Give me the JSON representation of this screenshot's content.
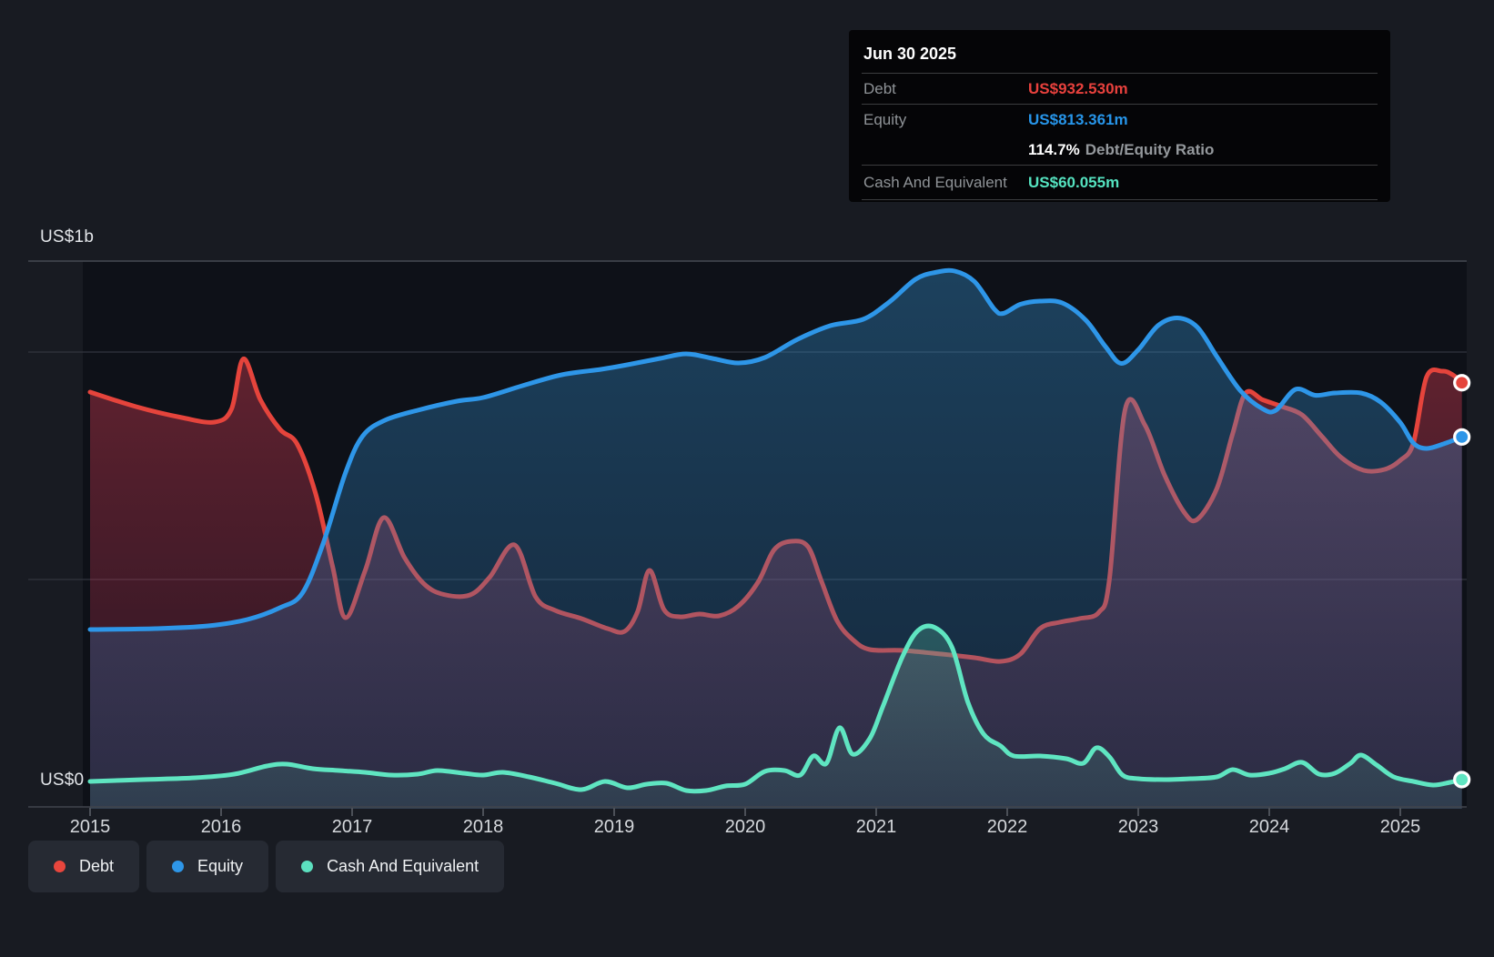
{
  "tooltip": {
    "date": "Jun 30 2025",
    "rows": [
      {
        "type": "metric",
        "label": "Debt",
        "value": "US$932.530m",
        "color": "#e8413d"
      },
      {
        "type": "metric",
        "label": "Equity",
        "value": "US$813.361m",
        "color": "#2795e9"
      },
      {
        "type": "ratio",
        "bold": "114.7%",
        "label": "Debt/Equity Ratio"
      },
      {
        "type": "metric",
        "label": "Cash And Equivalent",
        "value": "US$60.055m",
        "color": "#55e3c0"
      }
    ]
  },
  "y_axis": {
    "top_label": "US$1b",
    "bottom_label": "US$0"
  },
  "x_axis": {
    "years": [
      "2015",
      "2016",
      "2017",
      "2018",
      "2019",
      "2020",
      "2021",
      "2022",
      "2023",
      "2024",
      "2025"
    ]
  },
  "legend": [
    {
      "label": "Debt",
      "color": "#e8463d"
    },
    {
      "label": "Equity",
      "color": "#2e96e8"
    },
    {
      "label": "Cash And Equivalent",
      "color": "#5ce0bf"
    }
  ],
  "chart_data": {
    "type": "area",
    "x_unit": "year",
    "y_unit": "US$ millions",
    "x_range": [
      2015.0,
      2025.5
    ],
    "y_axis_range_musd": [
      0,
      1200
    ],
    "gridline_values_musd": [
      1000,
      500
    ],
    "grid": "horizontal-only",
    "legend_position": "bottom-left",
    "last_point_date": "Jun 30 2025",
    "series": [
      {
        "name": "Debt",
        "color": "#e5443c",
        "points": [
          [
            2015.0,
            912
          ],
          [
            2015.35,
            880
          ],
          [
            2015.7,
            856
          ],
          [
            2015.95,
            846
          ],
          [
            2016.08,
            875
          ],
          [
            2016.17,
            985
          ],
          [
            2016.3,
            895
          ],
          [
            2016.45,
            830
          ],
          [
            2016.58,
            798
          ],
          [
            2016.72,
            690
          ],
          [
            2016.85,
            530
          ],
          [
            2016.95,
            416
          ],
          [
            2017.1,
            520
          ],
          [
            2017.24,
            636
          ],
          [
            2017.4,
            548
          ],
          [
            2017.55,
            490
          ],
          [
            2017.7,
            467
          ],
          [
            2017.9,
            466
          ],
          [
            2018.05,
            505
          ],
          [
            2018.24,
            576
          ],
          [
            2018.4,
            462
          ],
          [
            2018.55,
            432
          ],
          [
            2018.75,
            414
          ],
          [
            2018.95,
            392
          ],
          [
            2019.08,
            386
          ],
          [
            2019.18,
            430
          ],
          [
            2019.27,
            520
          ],
          [
            2019.38,
            434
          ],
          [
            2019.5,
            418
          ],
          [
            2019.65,
            424
          ],
          [
            2019.8,
            420
          ],
          [
            2019.95,
            442
          ],
          [
            2020.1,
            495
          ],
          [
            2020.22,
            565
          ],
          [
            2020.35,
            584
          ],
          [
            2020.48,
            572
          ],
          [
            2020.58,
            498
          ],
          [
            2020.7,
            410
          ],
          [
            2020.82,
            368
          ],
          [
            2020.95,
            346
          ],
          [
            2021.2,
            344
          ],
          [
            2021.5,
            336
          ],
          [
            2021.75,
            328
          ],
          [
            2021.95,
            320
          ],
          [
            2022.1,
            336
          ],
          [
            2022.25,
            392
          ],
          [
            2022.4,
            406
          ],
          [
            2022.55,
            414
          ],
          [
            2022.7,
            428
          ],
          [
            2022.78,
            500
          ],
          [
            2022.9,
            874
          ],
          [
            2023.05,
            840
          ],
          [
            2023.2,
            730
          ],
          [
            2023.35,
            648
          ],
          [
            2023.45,
            632
          ],
          [
            2023.6,
            700
          ],
          [
            2023.72,
            820
          ],
          [
            2023.82,
            910
          ],
          [
            2023.95,
            895
          ],
          [
            2024.1,
            880
          ],
          [
            2024.25,
            862
          ],
          [
            2024.4,
            815
          ],
          [
            2024.55,
            768
          ],
          [
            2024.72,
            740
          ],
          [
            2024.88,
            742
          ],
          [
            2025.0,
            762
          ],
          [
            2025.1,
            800
          ],
          [
            2025.2,
            945
          ],
          [
            2025.32,
            958
          ],
          [
            2025.4,
            950
          ],
          [
            2025.47,
            932.53
          ]
        ]
      },
      {
        "name": "Equity",
        "color": "#2e96e8",
        "points": [
          [
            2015.0,
            390
          ],
          [
            2015.5,
            392
          ],
          [
            2015.9,
            398
          ],
          [
            2016.2,
            412
          ],
          [
            2016.45,
            438
          ],
          [
            2016.62,
            470
          ],
          [
            2016.78,
            580
          ],
          [
            2016.95,
            735
          ],
          [
            2017.08,
            815
          ],
          [
            2017.25,
            850
          ],
          [
            2017.5,
            872
          ],
          [
            2017.8,
            892
          ],
          [
            2018.0,
            900
          ],
          [
            2018.3,
            926
          ],
          [
            2018.6,
            950
          ],
          [
            2018.9,
            962
          ],
          [
            2019.1,
            972
          ],
          [
            2019.35,
            986
          ],
          [
            2019.55,
            996
          ],
          [
            2019.75,
            986
          ],
          [
            2019.95,
            976
          ],
          [
            2020.15,
            988
          ],
          [
            2020.4,
            1028
          ],
          [
            2020.65,
            1058
          ],
          [
            2020.9,
            1072
          ],
          [
            2021.1,
            1110
          ],
          [
            2021.3,
            1160
          ],
          [
            2021.45,
            1175
          ],
          [
            2021.6,
            1178
          ],
          [
            2021.75,
            1155
          ],
          [
            2021.9,
            1095
          ],
          [
            2021.97,
            1085
          ],
          [
            2022.1,
            1105
          ],
          [
            2022.25,
            1112
          ],
          [
            2022.42,
            1108
          ],
          [
            2022.6,
            1070
          ],
          [
            2022.75,
            1012
          ],
          [
            2022.87,
            975
          ],
          [
            2023.0,
            1005
          ],
          [
            2023.15,
            1058
          ],
          [
            2023.3,
            1075
          ],
          [
            2023.45,
            1055
          ],
          [
            2023.6,
            990
          ],
          [
            2023.78,
            915
          ],
          [
            2023.95,
            875
          ],
          [
            2024.05,
            872
          ],
          [
            2024.2,
            918
          ],
          [
            2024.35,
            905
          ],
          [
            2024.5,
            910
          ],
          [
            2024.7,
            910
          ],
          [
            2024.85,
            890
          ],
          [
            2025.0,
            845
          ],
          [
            2025.1,
            800
          ],
          [
            2025.2,
            788
          ],
          [
            2025.33,
            798
          ],
          [
            2025.47,
            813.36
          ]
        ]
      },
      {
        "name": "Cash And Equivalent",
        "color": "#5fe5c1",
        "points": [
          [
            2015.0,
            56
          ],
          [
            2015.4,
            60
          ],
          [
            2015.8,
            64
          ],
          [
            2016.1,
            72
          ],
          [
            2016.35,
            90
          ],
          [
            2016.5,
            94
          ],
          [
            2016.7,
            84
          ],
          [
            2016.9,
            80
          ],
          [
            2017.1,
            76
          ],
          [
            2017.3,
            70
          ],
          [
            2017.5,
            72
          ],
          [
            2017.65,
            80
          ],
          [
            2017.85,
            74
          ],
          [
            2018.0,
            70
          ],
          [
            2018.15,
            76
          ],
          [
            2018.35,
            66
          ],
          [
            2018.55,
            52
          ],
          [
            2018.75,
            38
          ],
          [
            2018.93,
            56
          ],
          [
            2019.1,
            42
          ],
          [
            2019.25,
            50
          ],
          [
            2019.4,
            52
          ],
          [
            2019.55,
            36
          ],
          [
            2019.7,
            36
          ],
          [
            2019.85,
            46
          ],
          [
            2020.0,
            50
          ],
          [
            2020.15,
            78
          ],
          [
            2020.3,
            80
          ],
          [
            2020.42,
            70
          ],
          [
            2020.52,
            112
          ],
          [
            2020.62,
            96
          ],
          [
            2020.72,
            174
          ],
          [
            2020.82,
            116
          ],
          [
            2020.95,
            150
          ],
          [
            2021.05,
            220
          ],
          [
            2021.2,
            330
          ],
          [
            2021.32,
            388
          ],
          [
            2021.45,
            394
          ],
          [
            2021.58,
            350
          ],
          [
            2021.7,
            230
          ],
          [
            2021.82,
            160
          ],
          [
            2021.95,
            134
          ],
          [
            2022.05,
            112
          ],
          [
            2022.25,
            112
          ],
          [
            2022.45,
            106
          ],
          [
            2022.58,
            96
          ],
          [
            2022.68,
            130
          ],
          [
            2022.78,
            110
          ],
          [
            2022.88,
            70
          ],
          [
            2023.0,
            62
          ],
          [
            2023.2,
            60
          ],
          [
            2023.4,
            62
          ],
          [
            2023.6,
            66
          ],
          [
            2023.72,
            82
          ],
          [
            2023.85,
            70
          ],
          [
            2024.0,
            74
          ],
          [
            2024.12,
            84
          ],
          [
            2024.25,
            98
          ],
          [
            2024.38,
            72
          ],
          [
            2024.5,
            74
          ],
          [
            2024.62,
            96
          ],
          [
            2024.7,
            114
          ],
          [
            2024.82,
            92
          ],
          [
            2024.95,
            66
          ],
          [
            2025.1,
            56
          ],
          [
            2025.25,
            48
          ],
          [
            2025.38,
            54
          ],
          [
            2025.47,
            60.06
          ]
        ]
      }
    ]
  }
}
